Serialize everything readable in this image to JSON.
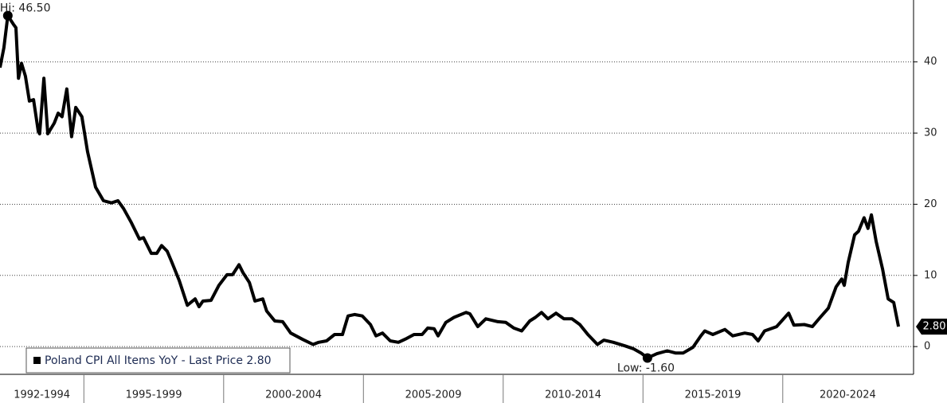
{
  "chart_data": {
    "type": "line",
    "xlim": [
      1992,
      2024.65
    ],
    "ylim": [
      -3.9,
      48.7
    ],
    "yticks": [
      0,
      10,
      20,
      30,
      40
    ],
    "grid": true,
    "xticks": [
      {
        "value": 1992,
        "label": "1992-1994"
      },
      {
        "value": 1995,
        "label": "1995-1999"
      },
      {
        "value": 2000,
        "label": "2000-2004"
      },
      {
        "value": 2005,
        "label": "2005-2009"
      },
      {
        "value": 2010,
        "label": "2010-2014"
      },
      {
        "value": 2015,
        "label": "2015-2019"
      },
      {
        "value": 2020,
        "label": "2020-2024"
      }
    ],
    "legend": "bottom-left",
    "series": [
      {
        "name": "Poland CPI All Items YoY - Last Price 2.80",
        "color": "#000000",
        "x": [
          1992.0,
          1992.14,
          1992.28,
          1992.48,
          1992.57,
          1992.66,
          1992.77,
          1992.91,
          1993.05,
          1993.2,
          1993.37,
          1993.42,
          1993.57,
          1993.71,
          1993.94,
          1994.08,
          1994.22,
          1994.39,
          1994.56,
          1994.71,
          1994.93,
          1995.13,
          1995.42,
          1995.7,
          1995.99,
          1996.22,
          1996.42,
          1996.7,
          1996.99,
          1997.13,
          1997.41,
          1997.61,
          1997.78,
          1997.98,
          1998.13,
          1998.41,
          1998.7,
          1998.98,
          1999.12,
          1999.26,
          1999.55,
          1999.83,
          2000.12,
          2000.32,
          2000.55,
          2000.69,
          2000.92,
          2001.12,
          2001.4,
          2001.54,
          2001.83,
          2002.11,
          2002.4,
          2002.83,
          2003.2,
          2003.4,
          2003.68,
          2003.97,
          2004.25,
          2004.45,
          2004.68,
          2004.96,
          2005.25,
          2005.45,
          2005.68,
          2005.96,
          2006.25,
          2006.53,
          2006.81,
          2007.1,
          2007.3,
          2007.53,
          2007.67,
          2007.95,
          2008.24,
          2008.67,
          2008.81,
          2009.09,
          2009.38,
          2009.81,
          2010.09,
          2010.38,
          2010.66,
          2010.95,
          2011.15,
          2011.37,
          2011.6,
          2011.89,
          2012.17,
          2012.46,
          2012.74,
          2013.03,
          2013.37,
          2013.6,
          2013.94,
          2014.36,
          2014.65,
          2014.93,
          2015.16,
          2015.5,
          2015.87,
          2016.16,
          2016.44,
          2016.79,
          2017.07,
          2017.21,
          2017.5,
          2017.93,
          2018.21,
          2018.64,
          2018.92,
          2019.12,
          2019.35,
          2019.78,
          2020.21,
          2020.4,
          2020.77,
          2021.06,
          2021.34,
          2021.63,
          2021.91,
          2022.11,
          2022.2,
          2022.34,
          2022.57,
          2022.71,
          2022.91,
          2023.05,
          2023.17,
          2023.34,
          2023.57,
          2023.77,
          2023.97,
          2024.14
        ],
        "values": [
          39.2,
          42,
          46.5,
          45.3,
          44.8,
          37.7,
          39.8,
          38,
          34.5,
          34.7,
          30.2,
          29.9,
          37.7,
          29.9,
          31.4,
          32.8,
          32.3,
          36.2,
          29.5,
          33.6,
          32.3,
          27.4,
          22.4,
          20.5,
          20.2,
          20.5,
          19.4,
          17.4,
          15.1,
          15.3,
          13.1,
          13.1,
          14.2,
          13.4,
          12,
          9.3,
          5.8,
          6.7,
          5.6,
          6.4,
          6.5,
          8.6,
          10.1,
          10.1,
          11.5,
          10.4,
          9,
          6.4,
          6.7,
          5,
          3.6,
          3.5,
          1.9,
          1,
          0.3,
          0.6,
          0.8,
          1.7,
          1.7,
          4.3,
          4.5,
          4.3,
          3.1,
          1.5,
          1.9,
          0.8,
          0.6,
          1.1,
          1.7,
          1.7,
          2.6,
          2.5,
          1.5,
          3.4,
          4.1,
          4.8,
          4.6,
          2.8,
          3.9,
          3.5,
          3.4,
          2.6,
          2.2,
          3.6,
          4.1,
          4.8,
          3.9,
          4.7,
          3.9,
          3.9,
          3.1,
          1.7,
          0.3,
          0.9,
          0.6,
          0.1,
          -0.3,
          -0.9,
          -1.6,
          -1,
          -0.6,
          -0.9,
          -0.9,
          -0.1,
          1.5,
          2.2,
          1.7,
          2.4,
          1.5,
          1.9,
          1.7,
          0.8,
          2.2,
          2.8,
          4.7,
          3,
          3.1,
          2.8,
          4.1,
          5.4,
          8.4,
          9.5,
          8.6,
          11.8,
          15.7,
          16.2,
          18.1,
          16.6,
          18.5,
          14.8,
          10.9,
          6.7,
          6.2,
          2.8
        ]
      }
    ],
    "annotations": [
      {
        "label": "Hi: 46.50",
        "x": 1992.28,
        "y": 46.5
      },
      {
        "label": "Low: -1.60",
        "x": 2015.16,
        "y": -1.6
      }
    ],
    "last_price": {
      "label": "2.80",
      "y": 2.8
    }
  }
}
